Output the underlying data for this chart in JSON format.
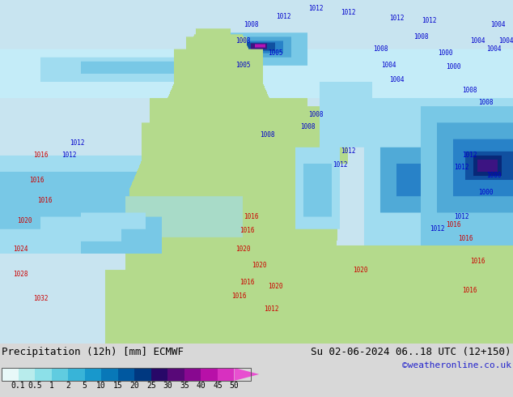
{
  "title_left": "Precipitation (12h) [mm] ECMWF",
  "title_right": "Su 02-06-2024 06..18 UTC (12+150)",
  "credit": "©weatheronline.co.uk",
  "colorbar_labels": [
    "0.1",
    "0.5",
    "1",
    "2",
    "5",
    "10",
    "15",
    "20",
    "25",
    "30",
    "35",
    "40",
    "45",
    "50"
  ],
  "colorbar_colors": [
    "#e8f8f8",
    "#b8ecec",
    "#8ce0e8",
    "#60cce0",
    "#38b4d8",
    "#1898cc",
    "#0878b8",
    "#0058a0",
    "#003880",
    "#280868",
    "#580878",
    "#880890",
    "#b810a8",
    "#d830c0",
    "#e850d0"
  ],
  "bg_color": "#d8d8d8",
  "map_bg_color": "#c8e8a0",
  "ocean_color": "#c0e4f0",
  "precip_light": "#a0d8f0",
  "precip_medium": "#60a8d0",
  "precip_dark": "#1050a0",
  "precip_intense": "#c020c0",
  "isobar_blue": "#0000cc",
  "isobar_red": "#cc0000",
  "title_fontsize": 9,
  "credit_fontsize": 8,
  "label_fontsize": 7,
  "figsize": [
    6.34,
    4.9
  ],
  "dpi": 100
}
